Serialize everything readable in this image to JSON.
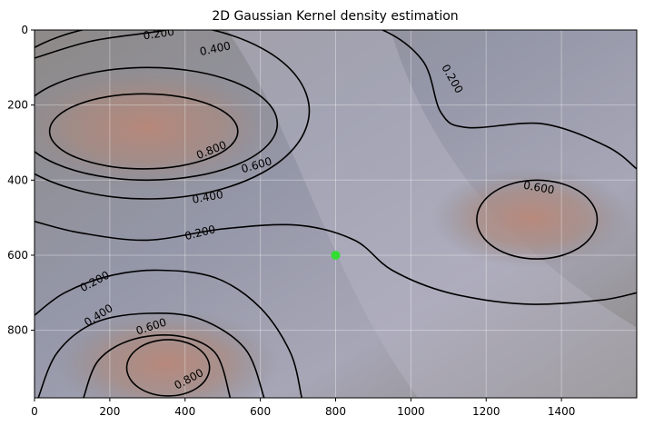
{
  "chart_data": {
    "type": "contour",
    "title": "2D Gaussian Kernel density estimation",
    "xlabel": "",
    "ylabel": "",
    "xlim": [
      0,
      1600
    ],
    "ylim": [
      980,
      0
    ],
    "x_ticks": [
      0,
      200,
      400,
      600,
      800,
      1000,
      1200,
      1400
    ],
    "y_ticks": [
      0,
      200,
      400,
      600,
      800
    ],
    "grid": true,
    "background": "aerial terrain photograph with reddish elliptical mounds",
    "contour_levels": [
      "0.200",
      "0.400",
      "0.600",
      "0.800"
    ],
    "kde_centers": [
      {
        "x": 300,
        "y": 260
      },
      {
        "x": 1320,
        "y": 510
      },
      {
        "x": 350,
        "y": 890
      }
    ],
    "contour_labels": [
      {
        "text": "0.200",
        "x": 330,
        "y": 10,
        "rotation": -8
      },
      {
        "text": "0.400",
        "x": 480,
        "y": 50,
        "rotation": -12
      },
      {
        "text": "0.200",
        "x": 1110,
        "y": 130,
        "rotation": 60
      },
      {
        "text": "0.800",
        "x": 470,
        "y": 320,
        "rotation": -22
      },
      {
        "text": "0.600",
        "x": 590,
        "y": 360,
        "rotation": -16
      },
      {
        "text": "0.400",
        "x": 460,
        "y": 445,
        "rotation": -10
      },
      {
        "text": "0.200",
        "x": 440,
        "y": 540,
        "rotation": -14
      },
      {
        "text": "0.600",
        "x": 1340,
        "y": 420,
        "rotation": 10
      },
      {
        "text": "0.200",
        "x": 160,
        "y": 670,
        "rotation": -28
      },
      {
        "text": "0.400",
        "x": 170,
        "y": 760,
        "rotation": -32
      },
      {
        "text": "0.600",
        "x": 310,
        "y": 790,
        "rotation": -18
      },
      {
        "text": "0.800",
        "x": 410,
        "y": 930,
        "rotation": -28
      }
    ],
    "marker": {
      "x": 800,
      "y": 600,
      "color": "#33dd33"
    }
  }
}
